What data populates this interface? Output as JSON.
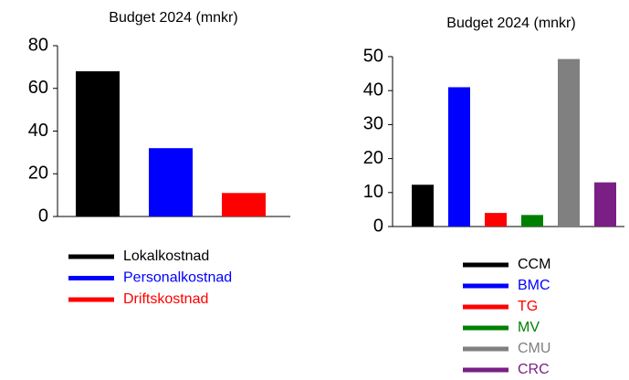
{
  "chart_data": [
    {
      "type": "bar",
      "title": "Budget 2024 (mnkr)",
      "categories": [
        "Lokalkostnad",
        "Personalkostnad",
        "Driftskostnad"
      ],
      "values": [
        68,
        32,
        11
      ],
      "colors": [
        "#000000",
        "#0000ff",
        "#ff0000"
      ],
      "ylim": [
        0,
        80
      ],
      "yticks": [
        0,
        20,
        40,
        60,
        80
      ]
    },
    {
      "type": "bar",
      "title": "Budget 2024 (mnkr)",
      "categories": [
        "CCM",
        "BMC",
        "TG",
        "MV",
        "CMU",
        "CRC"
      ],
      "values": [
        12.3,
        41,
        4,
        3.4,
        49.3,
        13
      ],
      "colors": [
        "#000000",
        "#0000ff",
        "#ff0000",
        "#008000",
        "#808080",
        "#7b1f85"
      ],
      "ylim": [
        0,
        50
      ],
      "yticks": [
        0,
        10,
        20,
        30,
        40,
        50
      ]
    }
  ]
}
